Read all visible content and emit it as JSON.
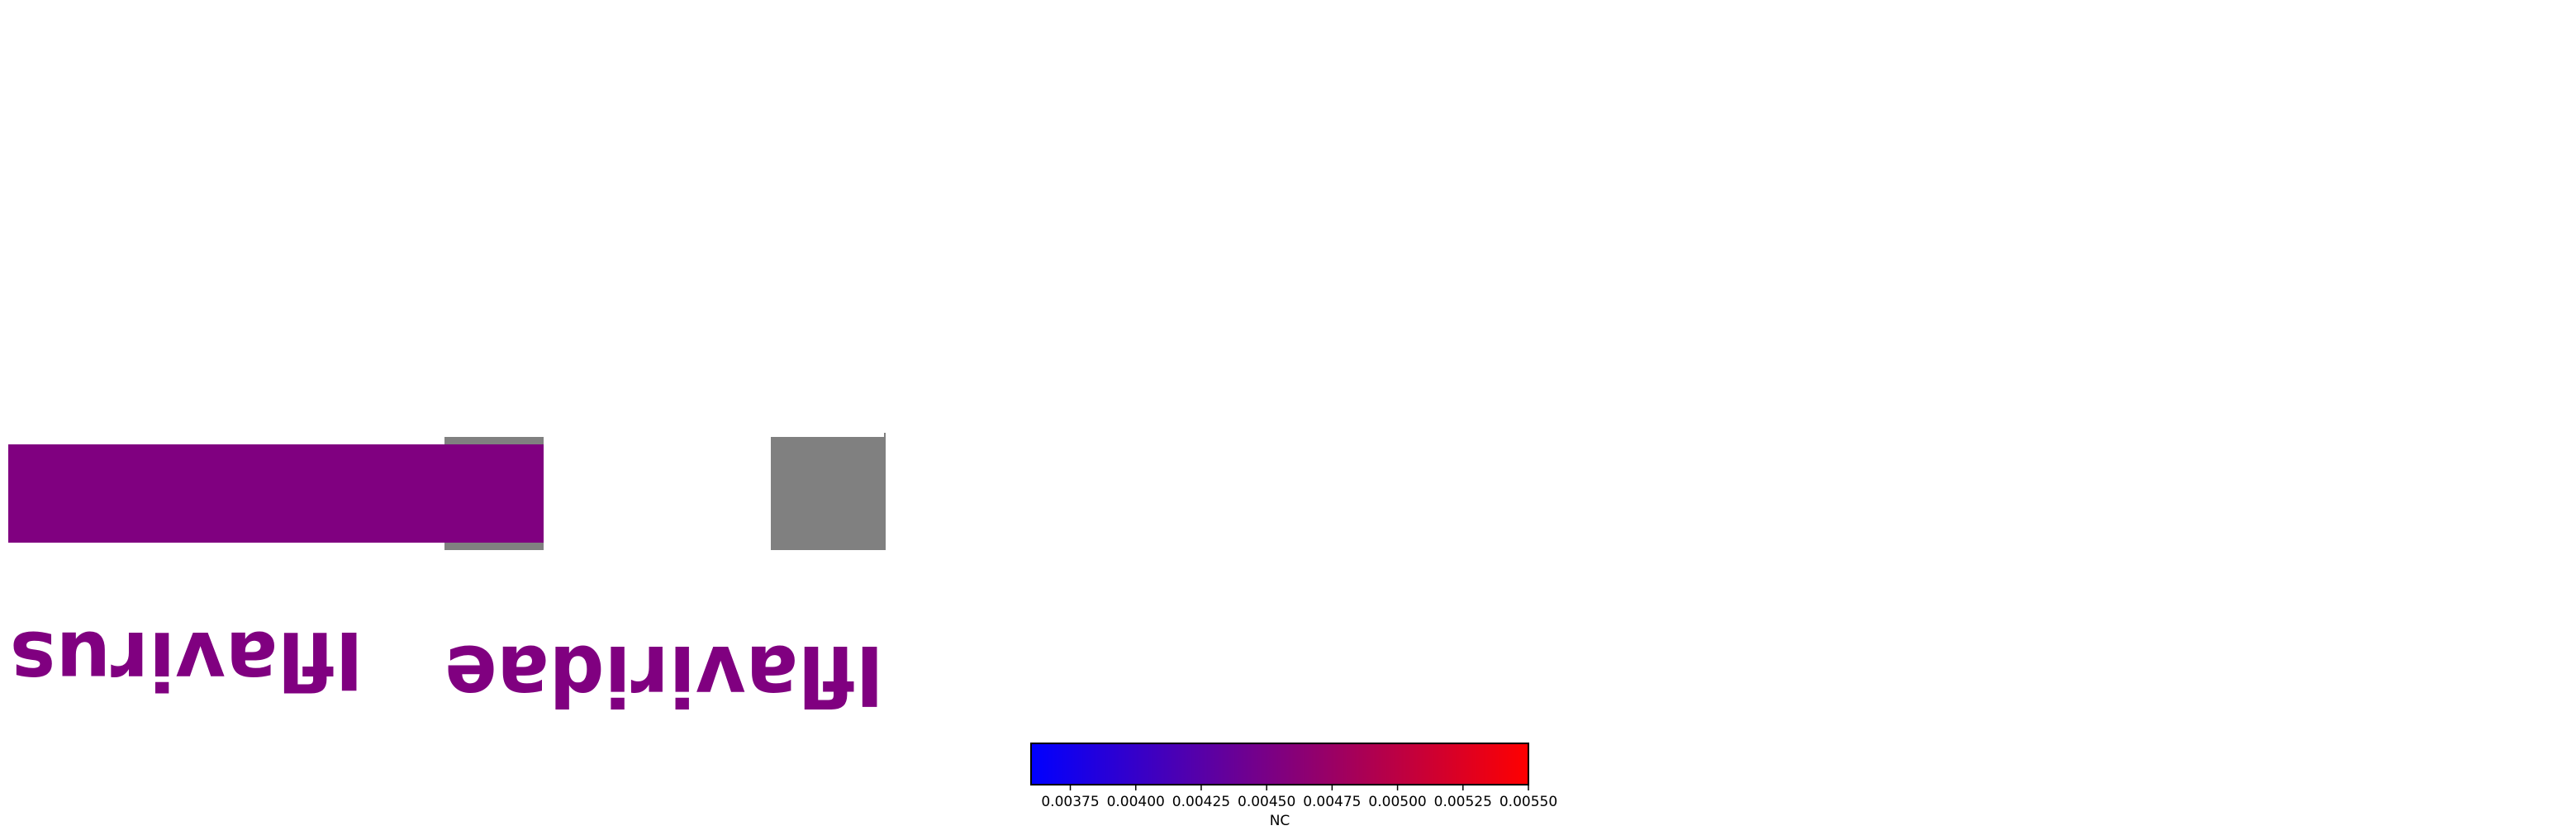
{
  "chart_data": {
    "type": "heatmap",
    "taxa": [
      {
        "name": "Iflavirus",
        "color": "#800080",
        "rank": "genus"
      },
      {
        "name": "Iflaviridae",
        "color": "#808080",
        "rank": "family"
      }
    ],
    "colorbar": {
      "label": "NC",
      "min": 0.0036,
      "max": 0.0055,
      "colors": [
        "#0000ff",
        "#ff0000"
      ],
      "ticks": [
        "0.00375",
        "0.00400",
        "0.00425",
        "0.00450",
        "0.00475",
        "0.00500",
        "0.00525",
        "0.00550"
      ],
      "tick_values": [
        0.00375,
        0.004,
        0.00425,
        0.0045,
        0.00475,
        0.005,
        0.00525,
        0.0055
      ]
    },
    "colors": {
      "genus": "#800080",
      "family": "#808080",
      "label": "#800080"
    }
  }
}
